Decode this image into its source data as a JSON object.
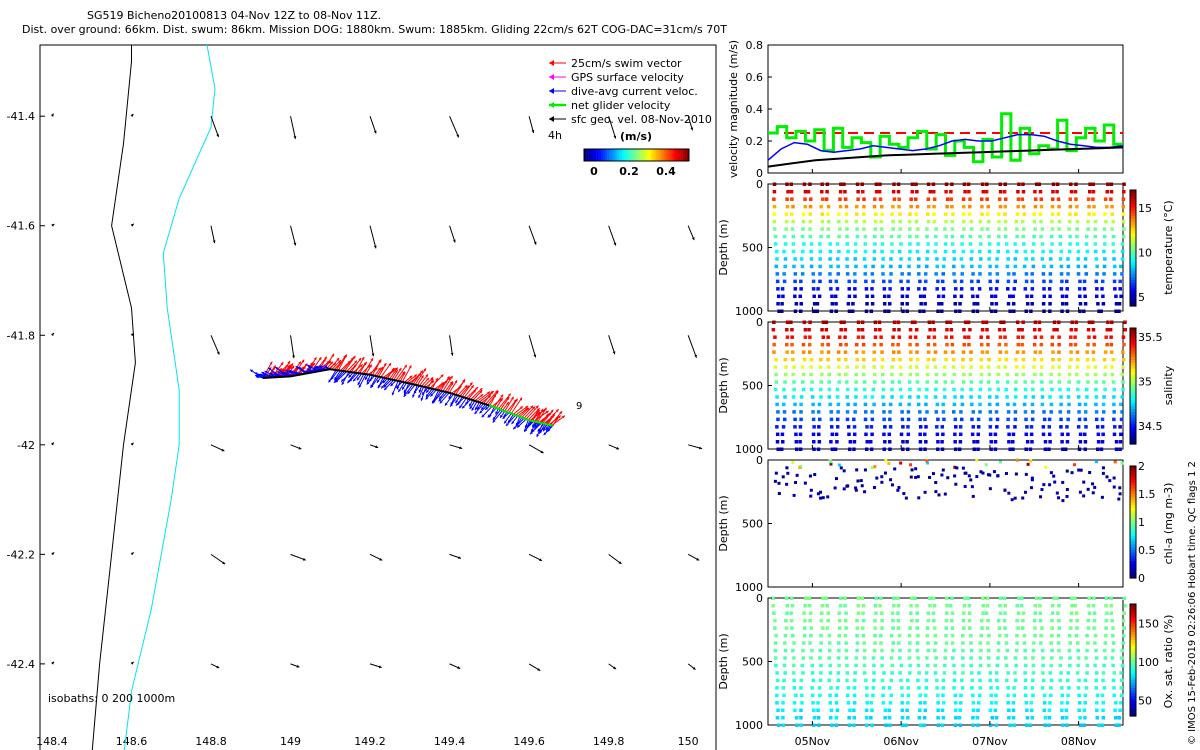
{
  "title_line1": "SG519 Bicheno20100813 04-Nov 12Z to 08-Nov 11Z.",
  "title_line2": "Dist. over ground: 66km. Dist. swum: 86km. Mission DOG: 1880km. Swum: 1885km. Gliding 22cm/s 62T COG-DAC=31cm/s 70T",
  "copyright": "© IMOS 15-Feb-2019 02:26:06 Hobart time. QC flags 1  2",
  "colors": {
    "swim": "#ff0000",
    "gps": "#ff00ff",
    "dac": "#0000ff",
    "net": "#00ee00",
    "geo": "#000000",
    "isobath_cyan": "#00e5ee"
  },
  "chart_data": [
    {
      "type": "scatter",
      "name": "map",
      "xlim": [
        148.37,
        150.07
      ],
      "ylim": [
        -42.57,
        -41.27
      ],
      "xticks": [
        148.4,
        148.6,
        148.8,
        149,
        149.2,
        149.4,
        149.6,
        149.8,
        150
      ],
      "xtick_labels": [
        "148.4",
        "148.6",
        "148.8",
        "149",
        "149.2",
        "149.4",
        "149.6",
        "149.8",
        "150"
      ],
      "yticks": [
        -41.4,
        -41.6,
        -41.8,
        -42,
        -42.2,
        -42.4
      ],
      "ytick_labels": [
        "-41.4",
        "-41.6",
        "-41.8",
        "-42",
        "-42.2",
        "-42.4"
      ],
      "legend": [
        {
          "label": "25cm/s swim vector",
          "color": "#ff0000"
        },
        {
          "label": "GPS surface velocity",
          "color": "#ff00ff"
        },
        {
          "label": "dive-avg current veloc.",
          "color": "#0000ff"
        },
        {
          "label": "net glider velocity",
          "color": "#00ee00"
        },
        {
          "label": "sfc geo. vel. 08-Nov-2010",
          "color": "#000000"
        }
      ],
      "legend_extra": "4h",
      "colorbar_title": "(m/s)",
      "colorbar_ticks": [
        "0",
        "0.2",
        "0.4"
      ],
      "isobaths_label": "isobaths: 0    200   1000m",
      "waypoint_label": "9",
      "isobath_1000": [
        [
          148.5,
          -42.57
        ],
        [
          148.52,
          -42.4
        ],
        [
          148.55,
          -42.2
        ],
        [
          148.58,
          -42.0
        ],
        [
          148.61,
          -41.85
        ],
        [
          148.6,
          -41.75
        ],
        [
          148.55,
          -41.6
        ],
        [
          148.58,
          -41.45
        ],
        [
          148.6,
          -41.3
        ],
        [
          148.6,
          -41.27
        ]
      ],
      "isobath_200": [
        [
          148.58,
          -42.57
        ],
        [
          148.6,
          -42.45
        ],
        [
          148.65,
          -42.3
        ],
        [
          148.7,
          -42.1
        ],
        [
          148.72,
          -42.0
        ],
        [
          148.72,
          -41.9
        ],
        [
          148.69,
          -41.75
        ],
        [
          148.68,
          -41.65
        ],
        [
          148.72,
          -41.55
        ],
        [
          148.8,
          -41.42
        ],
        [
          148.81,
          -41.35
        ],
        [
          148.79,
          -41.27
        ]
      ],
      "glider_track": [
        [
          148.93,
          -41.878
        ],
        [
          149.0,
          -41.875
        ],
        [
          149.1,
          -41.862
        ],
        [
          149.2,
          -41.872
        ],
        [
          149.3,
          -41.888
        ],
        [
          149.4,
          -41.905
        ],
        [
          149.5,
          -41.928
        ],
        [
          149.6,
          -41.955
        ],
        [
          149.66,
          -41.965
        ]
      ],
      "geo_grid_lon": [
        148.4,
        148.6,
        148.8,
        149.0,
        149.2,
        149.4,
        149.6,
        149.8,
        150.0
      ],
      "geo_grid_lat": [
        -41.4,
        -41.6,
        -41.8,
        -42.0,
        -42.2,
        -42.4
      ]
    },
    {
      "type": "line",
      "name": "velocity",
      "ylabel": "velocity magnitude (m/s)",
      "ylim": [
        0,
        0.8
      ],
      "yticks": [
        0,
        0.2,
        0.4,
        0.6,
        0.8
      ],
      "ytick_labels": [
        "0",
        "0.2",
        "0.4",
        "0.6",
        "0.8"
      ],
      "series": [
        {
          "name": "25cm/s swim reference",
          "color": "#ff0000",
          "style": "dashed",
          "values": [
            0.25,
            0.25
          ]
        },
        {
          "name": "net glider velocity",
          "color": "#00ee00",
          "values": [
            0.25,
            0.29,
            0.22,
            0.26,
            0.2,
            0.27,
            0.14,
            0.28,
            0.16,
            0.22,
            0.19,
            0.1,
            0.23,
            0.18,
            0.16,
            0.22,
            0.26,
            0.15,
            0.24,
            0.11,
            0.2,
            0.16,
            0.07,
            0.21,
            0.1,
            0.37,
            0.08,
            0.28,
            0.12,
            0.17,
            0.15,
            0.33,
            0.14,
            0.22,
            0.28,
            0.2,
            0.3,
            0.18
          ]
        },
        {
          "name": "dive-avg current",
          "color": "#0000ff",
          "values": [
            0.08,
            0.15,
            0.19,
            0.18,
            0.14,
            0.13,
            0.14,
            0.15,
            0.17,
            0.16,
            0.15,
            0.14,
            0.15,
            0.17,
            0.2,
            0.21,
            0.2,
            0.2,
            0.22,
            0.24,
            0.24,
            0.23,
            0.2,
            0.18,
            0.17,
            0.16,
            0.16,
            0.17
          ]
        },
        {
          "name": "surface",
          "color": "#000000",
          "values": [
            0.04,
            0.06,
            0.08,
            0.09,
            0.1,
            0.11,
            0.115,
            0.12,
            0.125,
            0.13,
            0.135,
            0.14,
            0.145,
            0.15,
            0.155,
            0.16
          ]
        }
      ]
    },
    {
      "type": "scatter",
      "name": "temperature",
      "ylabel": "Depth (m)",
      "cblabel": "temperature (°C)",
      "ylim": [
        0,
        1000
      ],
      "yticks": [
        0,
        500,
        1000
      ],
      "ytick_labels": [
        "0",
        "500",
        "1000"
      ],
      "clim": [
        4,
        17
      ],
      "cticks": [
        5,
        10,
        15
      ],
      "ctick_labels": [
        "5",
        "10",
        "15"
      ],
      "profile": [
        [
          0,
          17
        ],
        [
          100,
          15
        ],
        [
          200,
          13
        ],
        [
          300,
          11
        ],
        [
          400,
          10
        ],
        [
          500,
          9
        ],
        [
          650,
          8
        ],
        [
          800,
          6
        ],
        [
          1000,
          4
        ]
      ],
      "n_dives": 40,
      "max_depth": 1000
    },
    {
      "type": "scatter",
      "name": "salinity",
      "ylabel": "Depth (m)",
      "cblabel": "salinity",
      "ylim": [
        0,
        1000
      ],
      "yticks": [
        0,
        500,
        1000
      ],
      "ytick_labels": [
        "0",
        "500",
        "1000"
      ],
      "clim": [
        34.3,
        35.6
      ],
      "cticks": [
        34.5,
        35,
        35.5
      ],
      "ctick_labels": [
        "34.5",
        "35",
        "35.5"
      ],
      "profile": [
        [
          0,
          35.55
        ],
        [
          100,
          35.45
        ],
        [
          200,
          35.3
        ],
        [
          300,
          35.15
        ],
        [
          400,
          35.0
        ],
        [
          500,
          34.85
        ],
        [
          650,
          34.7
        ],
        [
          800,
          34.5
        ],
        [
          1000,
          34.38
        ]
      ],
      "n_dives": 40,
      "max_depth": 1000
    },
    {
      "type": "scatter",
      "name": "chlorophyll",
      "ylabel": "Depth (m)",
      "cblabel": "chl-a (mg m-3)",
      "ylim": [
        0,
        1000
      ],
      "yticks": [
        0,
        500,
        1000
      ],
      "ytick_labels": [
        "0",
        "500",
        "1000"
      ],
      "clim": [
        0,
        2
      ],
      "cticks": [
        0,
        0.5,
        1,
        1.5,
        2
      ],
      "ctick_labels": [
        "0",
        "0.5",
        "1",
        "1.5",
        "2"
      ],
      "n_dives": 40,
      "max_depth": 300
    },
    {
      "type": "scatter",
      "name": "oxygen",
      "ylabel": "Depth (m)",
      "cblabel": "Ox. sat. ratio (%)",
      "ylim": [
        0,
        1000
      ],
      "yticks": [
        0,
        500,
        1000
      ],
      "ytick_labels": [
        "0",
        "500",
        "1000"
      ],
      "clim": [
        30,
        175
      ],
      "cticks": [
        50,
        100,
        150
      ],
      "ctick_labels": [
        "50",
        "100",
        "150"
      ],
      "profile": [
        [
          0,
          100
        ],
        [
          200,
          100
        ],
        [
          400,
          98
        ],
        [
          600,
          92
        ],
        [
          800,
          85
        ],
        [
          1000,
          78
        ]
      ],
      "xticks_labels": [
        "05Nov",
        "06Nov",
        "07Nov",
        "08Nov"
      ],
      "xticks_days": [
        0.5,
        1.5,
        2.5,
        3.5
      ],
      "n_dives": 40,
      "max_depth": 1000
    }
  ]
}
